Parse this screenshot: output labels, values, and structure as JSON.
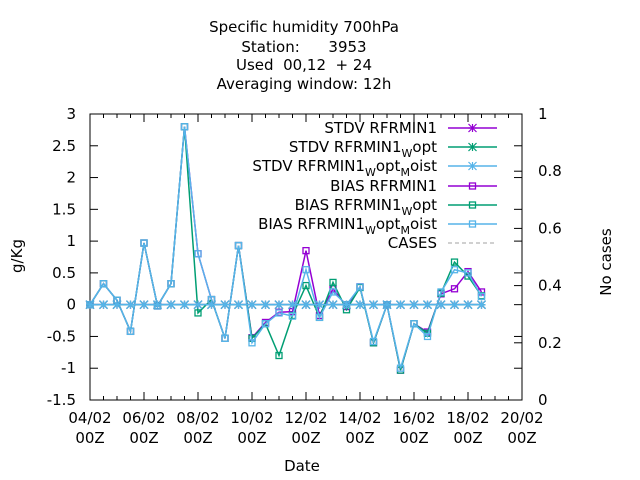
{
  "chart_data": {
    "type": "line",
    "title_lines": [
      "Specific humidity 700hPa",
      "Station:      3953",
      "Used  00,12  + 24",
      "Averaging window: 12h"
    ],
    "xlabel": "Date",
    "ylabel": "g/Kg",
    "y2label": "No cases",
    "ylim": [
      -1.5,
      3
    ],
    "y2lim": [
      0,
      1
    ],
    "xlim": [
      0,
      32
    ],
    "yticks": [
      "-1.5",
      "-1",
      "-0.5",
      "0",
      "0.5",
      "1",
      "1.5",
      "2",
      "2.5",
      "3"
    ],
    "y2ticks": [
      "0",
      "0.2",
      "0.4",
      "0.6",
      "0.8",
      "1"
    ],
    "xticks": [
      {
        "x": 0,
        "date": "04/02",
        "hour": "00Z"
      },
      {
        "x": 4,
        "date": "06/02",
        "hour": "00Z"
      },
      {
        "x": 8,
        "date": "08/02",
        "hour": "00Z"
      },
      {
        "x": 12,
        "date": "10/02",
        "hour": "00Z"
      },
      {
        "x": 16,
        "date": "12/02",
        "hour": "00Z"
      },
      {
        "x": 20,
        "date": "14/02",
        "hour": "00Z"
      },
      {
        "x": 24,
        "date": "16/02",
        "hour": "00Z"
      },
      {
        "x": 28,
        "date": "18/02",
        "hour": "00Z"
      },
      {
        "x": 32,
        "date": "20/02",
        "hour": "00Z"
      }
    ],
    "grid": false,
    "legend_position": "top-right",
    "series": [
      {
        "name": "STDV RFRMIN1",
        "color": "#9400d3",
        "marker": "star",
        "axis": "y",
        "x": [
          0,
          1,
          2,
          3,
          4,
          5,
          6,
          7,
          8,
          9,
          10,
          11,
          12,
          13,
          14,
          15,
          16,
          17,
          18,
          19,
          20,
          21,
          22,
          23,
          24,
          25,
          26,
          27,
          28,
          29
        ],
        "values": [
          0,
          0,
          0,
          0,
          0,
          0,
          0,
          0,
          0,
          0,
          0,
          0,
          0,
          0,
          0,
          0,
          0,
          0,
          0,
          0,
          0,
          0,
          0,
          0,
          0,
          0,
          0,
          0,
          0,
          0
        ]
      },
      {
        "name": "STDV RFRMIN1 W opt",
        "color": "#009e73",
        "marker": "star",
        "axis": "y",
        "x": [
          0,
          1,
          2,
          3,
          4,
          5,
          6,
          7,
          8,
          9,
          10,
          11,
          12,
          13,
          14,
          15,
          16,
          17,
          18,
          19,
          20,
          21,
          22,
          23,
          24,
          25,
          26,
          27,
          28,
          29
        ],
        "values": [
          0,
          0,
          0,
          0,
          0,
          0,
          0,
          0,
          0,
          0,
          0,
          0,
          0,
          0,
          0,
          0,
          0,
          0,
          0,
          0,
          0,
          0,
          0,
          0,
          0,
          0,
          0,
          0,
          0,
          0
        ]
      },
      {
        "name": "STDV RFRMIN1 W opt M oist",
        "color": "#56b4e9",
        "marker": "star",
        "axis": "y",
        "x": [
          0,
          1,
          2,
          3,
          4,
          5,
          6,
          7,
          8,
          9,
          10,
          11,
          12,
          13,
          14,
          15,
          16,
          17,
          18,
          19,
          20,
          21,
          22,
          23,
          24,
          25,
          26,
          27,
          28,
          29
        ],
        "values": [
          0,
          0,
          0,
          0,
          0,
          0,
          0,
          0,
          0,
          0,
          0,
          0,
          0,
          0,
          0,
          0,
          0,
          0,
          0,
          0,
          0,
          0,
          0,
          0,
          0,
          0,
          0,
          0,
          0,
          0
        ]
      },
      {
        "name": "BIAS RFRMIN1",
        "color": "#9400d3",
        "marker": "square",
        "axis": "y",
        "x": [
          0,
          1,
          2,
          3,
          4,
          5,
          6,
          7,
          8,
          9,
          10,
          11,
          12,
          13,
          14,
          15,
          16,
          17,
          18,
          19,
          20,
          21,
          22,
          23,
          24,
          25,
          26,
          27,
          28,
          29
        ],
        "values": [
          0,
          0.33,
          0.07,
          -0.42,
          0.97,
          -0.02,
          0.33,
          2.8,
          0.8,
          0.08,
          -0.53,
          0.93,
          -0.52,
          -0.28,
          -0.12,
          -0.11,
          0.85,
          -0.17,
          0.25,
          -0.03,
          0.28,
          -0.6,
          0,
          -1.03,
          -0.3,
          -0.43,
          0.17,
          0.25,
          0.52,
          0.2
        ]
      },
      {
        "name": "BIAS RFRMIN1 W opt",
        "color": "#009e73",
        "marker": "square",
        "axis": "y",
        "x": [
          0,
          1,
          2,
          3,
          4,
          5,
          6,
          7,
          8,
          9,
          10,
          11,
          12,
          13,
          14,
          15,
          16,
          17,
          18,
          19,
          20,
          21,
          22,
          23,
          24,
          25,
          26,
          27,
          28,
          29
        ],
        "values": [
          0,
          0.33,
          0.07,
          -0.42,
          0.97,
          -0.02,
          0.33,
          2.8,
          -0.13,
          0.08,
          -0.53,
          0.93,
          -0.53,
          -0.3,
          -0.8,
          -0.17,
          0.3,
          -0.2,
          0.35,
          -0.08,
          0.27,
          -0.6,
          0,
          -1.03,
          -0.3,
          -0.45,
          0.18,
          0.67,
          0.45,
          0.14
        ]
      },
      {
        "name": "BIAS RFRMIN1 W opt M oist",
        "color": "#56b4e9",
        "marker": "square",
        "axis": "y",
        "x": [
          0,
          1,
          2,
          3,
          4,
          5,
          6,
          7,
          8,
          9,
          10,
          11,
          12,
          13,
          14,
          15,
          16,
          17,
          18,
          19,
          20,
          21,
          22,
          23,
          24,
          25,
          26,
          27,
          28,
          29
        ],
        "values": [
          0,
          0.33,
          0.07,
          -0.42,
          0.97,
          -0.02,
          0.33,
          2.8,
          0.8,
          0.08,
          -0.53,
          0.93,
          -0.6,
          -0.3,
          -0.13,
          -0.18,
          0.55,
          -0.2,
          0.2,
          0,
          0.28,
          -0.58,
          0,
          -1.0,
          -0.3,
          -0.5,
          0.2,
          0.55,
          0.5,
          0.13
        ]
      },
      {
        "name": "CASES",
        "color": "#a0a0a0",
        "marker": "none",
        "dash": true,
        "axis": "y2",
        "x": [],
        "values": []
      }
    ],
    "legend": [
      {
        "text": "STDV RFRMIN1",
        "sub": []
      },
      {
        "text": "STDV RFRMIN1",
        "sub": [
          "W",
          "opt"
        ]
      },
      {
        "text": "STDV RFRMIN1",
        "sub": [
          "W",
          "opt",
          "M",
          "oist"
        ]
      },
      {
        "text": "BIAS RFRMIN1",
        "sub": []
      },
      {
        "text": "BIAS RFRMIN1",
        "sub": [
          "W",
          "opt"
        ]
      },
      {
        "text": "BIAS RFRMIN1",
        "sub": [
          "W",
          "opt",
          "M",
          "oist"
        ]
      },
      {
        "text": "CASES",
        "sub": []
      }
    ]
  }
}
